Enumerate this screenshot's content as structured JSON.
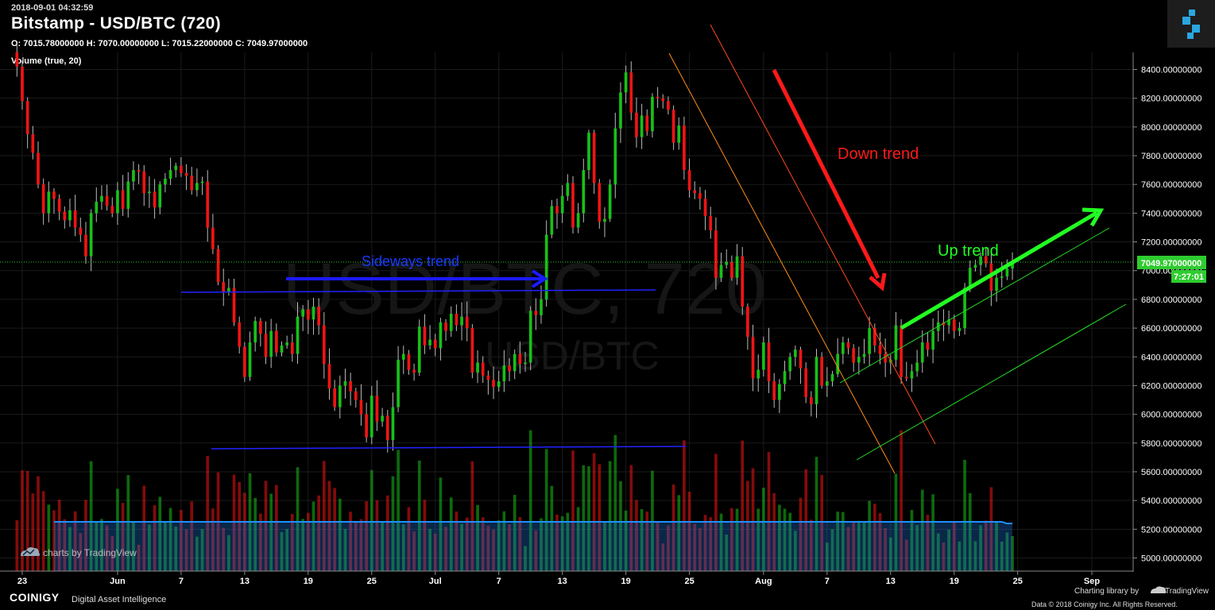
{
  "header": {
    "timestamp": "2018-09-01 04:32:59",
    "title": "Bitstamp - USD/BTC (720)",
    "ohlc": "O: 7015.78000000 H: 7070.00000000 L: 7015.22000000 C: 7049.97000000",
    "volume_label": "Volume (true, 20)"
  },
  "watermark": {
    "main": "USD/BTC, 720",
    "sub": "USD/BTC"
  },
  "footer": {
    "tradingview_tag": "charts by TradingView",
    "brand": "COINIGY",
    "brand_tagline": "Digital Asset Intelligence",
    "charting_library": "Charting library by",
    "tradingview": "TradingView",
    "copyright": "Data © 2018 Coinigy Inc. All Rights Reserved."
  },
  "price_badge": {
    "value": "7049.97000000",
    "countdown": "7:27:01"
  },
  "annotations": {
    "down": "Down trend",
    "up": "Up trend",
    "sideways": "Sideways trend"
  },
  "colors": {
    "up": "#18c018",
    "down": "#f01414",
    "volume_ma": "#1e90ff",
    "down_trend": "#ff1a1a",
    "up_trend": "#22ff22",
    "sideways": "#1a1aff",
    "badge": "#2ecc2e"
  },
  "chart_data": {
    "type": "candlestick",
    "title": "Bitstamp - USD/BTC (720)",
    "interval": "720",
    "xlabel": "",
    "ylabel": "",
    "ylim": [
      4900,
      8500
    ],
    "y_ticks": [
      5000,
      5200,
      5400,
      5600,
      5800,
      6000,
      6200,
      6400,
      6600,
      6800,
      7000,
      7200,
      7400,
      7600,
      7800,
      8000,
      8200,
      8400
    ],
    "y_tick_labels": [
      "5000.00000000",
      "5200.00000000",
      "5400.00000000",
      "5600.00000000",
      "5800.00000000",
      "6000.00000000",
      "6200.00000000",
      "6400.00000000",
      "6600.00000000",
      "6800.00000000",
      "7000.00000000",
      "7200.00000000",
      "7400.00000000",
      "7600.00000000",
      "7800.00000000",
      "8000.00000000",
      "8200.00000000",
      "8400.00000000"
    ],
    "x_range_days": [
      -1.4,
      102.5
    ],
    "x_tick_labels": [
      {
        "day": 0,
        "label": "23"
      },
      {
        "day": 9,
        "label": "Jun"
      },
      {
        "day": 15,
        "label": "7"
      },
      {
        "day": 21,
        "label": "13"
      },
      {
        "day": 27,
        "label": "19"
      },
      {
        "day": 33,
        "label": "25"
      },
      {
        "day": 39,
        "label": "Jul"
      },
      {
        "day": 45,
        "label": "7"
      },
      {
        "day": 51,
        "label": "13"
      },
      {
        "day": 57,
        "label": "19"
      },
      {
        "day": 63,
        "label": "25"
      },
      {
        "day": 70,
        "label": "Aug"
      },
      {
        "day": 76,
        "label": "7"
      },
      {
        "day": 82,
        "label": "13"
      },
      {
        "day": 88,
        "label": "19"
      },
      {
        "day": 94,
        "label": "25"
      },
      {
        "day": 101,
        "label": "Sep"
      }
    ],
    "last_price": 7049.97,
    "closes": [
      8420,
      8180,
      7950,
      7820,
      7600,
      7400,
      7550,
      7500,
      7410,
      7350,
      7420,
      7300,
      7250,
      7100,
      7400,
      7480,
      7520,
      7450,
      7400,
      7560,
      7430,
      7620,
      7700,
      7690,
      7540,
      7550,
      7440,
      7600,
      7640,
      7700,
      7730,
      7680,
      7660,
      7560,
      7610,
      7620,
      7300,
      7150,
      6920,
      6850,
      6880,
      6640,
      6470,
      6260,
      6500,
      6650,
      6560,
      6400,
      6580,
      6430,
      6480,
      6500,
      6420,
      6680,
      6730,
      6660,
      6750,
      6620,
      6350,
      6180,
      6050,
      6200,
      6230,
      6160,
      6100,
      6000,
      5840,
      6130,
      5950,
      5990,
      5820,
      6050,
      6380,
      6420,
      6310,
      6290,
      6610,
      6480,
      6520,
      6460,
      6640,
      6580,
      6700,
      6620,
      6680,
      6600,
      6290,
      6360,
      6270,
      6240,
      6190,
      6230,
      6340,
      6300,
      6420,
      6350,
      6360,
      6720,
      6690,
      6800,
      7250,
      7450,
      7400,
      7520,
      7610,
      7300,
      7400,
      7700,
      7960,
      7610,
      7340,
      7360,
      7600,
      7990,
      8240,
      8380,
      8100,
      7930,
      8080,
      7970,
      8210,
      8200,
      8180,
      8120,
      7890,
      8010,
      7700,
      7560,
      7540,
      7500,
      7380,
      7280,
      6950,
      7040,
      7060,
      6950,
      7100,
      6750,
      6540,
      6250,
      6310,
      6500,
      6230,
      6100,
      6210,
      6300,
      6400,
      6450,
      6320,
      6120,
      6070,
      6400,
      6200,
      6230,
      6280,
      6420,
      6500,
      6460,
      6360,
      6400,
      6420,
      6600,
      6480,
      6420,
      6360,
      6380,
      6620,
      6260,
      6250,
      6300,
      6360,
      6500,
      6450,
      6580,
      6640,
      6620,
      6660,
      6580,
      6600,
      6880,
      7020,
      7040,
      7100,
      7050,
      6860,
      6950,
      6960,
      7015,
      7049.97
    ],
    "volume": {
      "ma_period": 20,
      "ma_range": [
        5080,
        5290
      ]
    }
  }
}
